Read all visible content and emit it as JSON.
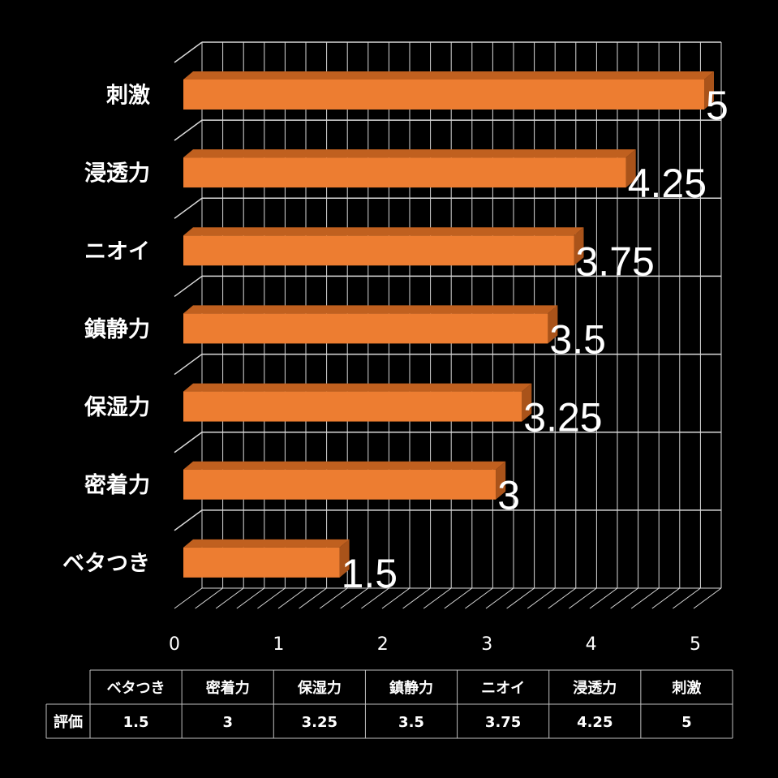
{
  "chart_data": {
    "type": "bar",
    "orientation": "horizontal",
    "style": "3d",
    "categories": [
      "刺激",
      "浸透力",
      "ニオイ",
      "鎮静力",
      "保湿力",
      "密着力",
      "ベタつき"
    ],
    "series": [
      {
        "name": "評価",
        "values": [
          5,
          4.25,
          3.75,
          3.5,
          3.25,
          3,
          1.5
        ]
      }
    ],
    "data_labels": [
      "5",
      "4.25",
      "3.75",
      "3.5",
      "3.25",
      "3",
      "1.5"
    ],
    "xlim": [
      0,
      5
    ],
    "x_ticks": [
      "0",
      "1",
      "2",
      "3",
      "4",
      "5"
    ],
    "grid": true,
    "bar_color": "#ED7D31",
    "data_table": {
      "row_label": "評価",
      "columns": [
        "ベタつき",
        "密着力",
        "保湿力",
        "鎮静力",
        "ニオイ",
        "浸透力",
        "刺激"
      ],
      "values": [
        "1.5",
        "3",
        "3.25",
        "3.5",
        "3.75",
        "4.25",
        "5"
      ]
    }
  }
}
